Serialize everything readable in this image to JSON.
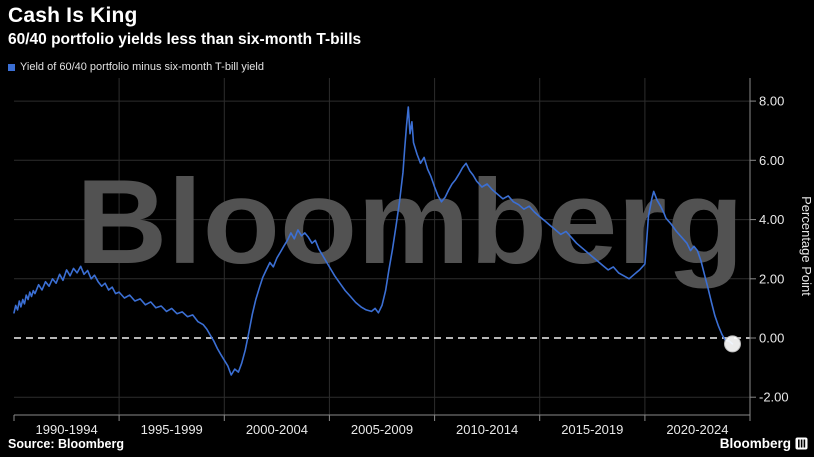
{
  "header": {
    "title": "Cash Is King",
    "subtitle": "60/40 portfolio yields less than six-month T-bills"
  },
  "legend": {
    "label": "Yield of 60/40 portfolio minus six-month T-bill yield",
    "color": "#3b6fd4"
  },
  "watermark": "Bloomberg",
  "axis": {
    "y_label": "Percentage Point"
  },
  "footer": {
    "source": "Source: Bloomberg",
    "brand": "Bloomberg"
  },
  "chart_data": {
    "type": "line",
    "title": "Cash Is King",
    "subtitle": "60/40 portfolio yields less than six-month T-bills",
    "series_name": "Yield of 60/40 portfolio minus six-month T-bill yield",
    "line_color": "#3b6fd4",
    "x_range": [
      1990,
      2025
    ],
    "ylim": [
      -2.6,
      8.78
    ],
    "y_ticks": [
      8,
      6,
      4,
      2,
      0,
      -2
    ],
    "y_tick_labels": [
      "8.00",
      "6.00",
      "4.00",
      "2.00",
      "0.00",
      "-2.00"
    ],
    "x_tick_labels": [
      "1990-1994",
      "1995-1999",
      "2000-2004",
      "2005-2009",
      "2010-2014",
      "2015-2019",
      "2020-2024"
    ],
    "zero_line": {
      "style": "dashed",
      "color": "#f2f2f2",
      "value": 0
    },
    "grid": "on",
    "legend_position": "top-left",
    "end_marker": {
      "value": -0.2,
      "year": 2024.17,
      "color": "#ffffff"
    },
    "colors": {
      "grid": "#2d2d2d",
      "axis": "#8a8a8a",
      "text": "#e8e8e8",
      "watermark": "#525252",
      "background": "#000000",
      "marker": "#ffffff",
      "zero": "#f2f2f2"
    },
    "points": [
      [
        1990,
        0.85
      ],
      [
        1990.08,
        1.1
      ],
      [
        1990.17,
        0.95
      ],
      [
        1990.25,
        1.25
      ],
      [
        1990.33,
        1.05
      ],
      [
        1990.42,
        1.3
      ],
      [
        1990.5,
        1.15
      ],
      [
        1990.58,
        1.45
      ],
      [
        1990.67,
        1.3
      ],
      [
        1990.75,
        1.55
      ],
      [
        1990.83,
        1.4
      ],
      [
        1990.92,
        1.6
      ],
      [
        1991,
        1.5
      ],
      [
        1991.17,
        1.8
      ],
      [
        1991.33,
        1.62
      ],
      [
        1991.5,
        1.9
      ],
      [
        1991.67,
        1.75
      ],
      [
        1991.83,
        2.0
      ],
      [
        1992,
        1.85
      ],
      [
        1992.17,
        2.15
      ],
      [
        1992.33,
        1.95
      ],
      [
        1992.5,
        2.3
      ],
      [
        1992.67,
        2.1
      ],
      [
        1992.83,
        2.35
      ],
      [
        1993,
        2.2
      ],
      [
        1993.17,
        2.42
      ],
      [
        1993.33,
        2.15
      ],
      [
        1993.5,
        2.28
      ],
      [
        1993.67,
        2.0
      ],
      [
        1993.83,
        2.12
      ],
      [
        1994,
        1.9
      ],
      [
        1994.17,
        1.75
      ],
      [
        1994.33,
        1.85
      ],
      [
        1994.5,
        1.62
      ],
      [
        1994.67,
        1.72
      ],
      [
        1994.83,
        1.5
      ],
      [
        1995,
        1.55
      ],
      [
        1995.25,
        1.35
      ],
      [
        1995.5,
        1.45
      ],
      [
        1995.75,
        1.25
      ],
      [
        1996,
        1.32
      ],
      [
        1996.25,
        1.12
      ],
      [
        1996.5,
        1.22
      ],
      [
        1996.75,
        1.02
      ],
      [
        1997,
        1.08
      ],
      [
        1997.25,
        0.9
      ],
      [
        1997.5,
        1.0
      ],
      [
        1997.75,
        0.82
      ],
      [
        1998,
        0.88
      ],
      [
        1998.25,
        0.72
      ],
      [
        1998.5,
        0.78
      ],
      [
        1998.75,
        0.55
      ],
      [
        1999,
        0.45
      ],
      [
        1999.17,
        0.3
      ],
      [
        1999.33,
        0.1
      ],
      [
        1999.5,
        -0.1
      ],
      [
        1999.67,
        -0.35
      ],
      [
        1999.83,
        -0.55
      ],
      [
        2000,
        -0.75
      ],
      [
        2000.17,
        -0.95
      ],
      [
        2000.33,
        -1.25
      ],
      [
        2000.5,
        -1.05
      ],
      [
        2000.67,
        -1.15
      ],
      [
        2000.83,
        -0.85
      ],
      [
        2001,
        -0.4
      ],
      [
        2001.17,
        0.2
      ],
      [
        2001.33,
        0.8
      ],
      [
        2001.5,
        1.3
      ],
      [
        2001.67,
        1.7
      ],
      [
        2001.83,
        2.05
      ],
      [
        2002,
        2.3
      ],
      [
        2002.17,
        2.55
      ],
      [
        2002.33,
        2.4
      ],
      [
        2002.5,
        2.7
      ],
      [
        2002.67,
        2.9
      ],
      [
        2002.83,
        3.1
      ],
      [
        2003,
        3.3
      ],
      [
        2003.17,
        3.55
      ],
      [
        2003.33,
        3.35
      ],
      [
        2003.5,
        3.65
      ],
      [
        2003.67,
        3.45
      ],
      [
        2003.83,
        3.55
      ],
      [
        2004,
        3.4
      ],
      [
        2004.17,
        3.2
      ],
      [
        2004.33,
        3.3
      ],
      [
        2004.5,
        3.0
      ],
      [
        2004.67,
        2.8
      ],
      [
        2004.83,
        2.6
      ],
      [
        2005,
        2.4
      ],
      [
        2005.25,
        2.1
      ],
      [
        2005.5,
        1.85
      ],
      [
        2005.75,
        1.6
      ],
      [
        2006,
        1.4
      ],
      [
        2006.25,
        1.2
      ],
      [
        2006.5,
        1.05
      ],
      [
        2006.75,
        0.95
      ],
      [
        2007,
        0.9
      ],
      [
        2007.17,
        1.0
      ],
      [
        2007.33,
        0.85
      ],
      [
        2007.5,
        1.1
      ],
      [
        2007.67,
        1.6
      ],
      [
        2007.83,
        2.3
      ],
      [
        2008,
        3.0
      ],
      [
        2008.17,
        3.8
      ],
      [
        2008.33,
        4.6
      ],
      [
        2008.5,
        5.6
      ],
      [
        2008.58,
        6.4
      ],
      [
        2008.67,
        7.2
      ],
      [
        2008.75,
        7.8
      ],
      [
        2008.83,
        6.9
      ],
      [
        2008.92,
        7.3
      ],
      [
        2009,
        6.6
      ],
      [
        2009.17,
        6.2
      ],
      [
        2009.33,
        5.9
      ],
      [
        2009.5,
        6.1
      ],
      [
        2009.67,
        5.7
      ],
      [
        2009.83,
        5.45
      ],
      [
        2010,
        5.1
      ],
      [
        2010.17,
        4.8
      ],
      [
        2010.33,
        4.6
      ],
      [
        2010.5,
        4.75
      ],
      [
        2010.67,
        5.0
      ],
      [
        2010.83,
        5.2
      ],
      [
        2011,
        5.35
      ],
      [
        2011.17,
        5.55
      ],
      [
        2011.33,
        5.75
      ],
      [
        2011.5,
        5.9
      ],
      [
        2011.67,
        5.65
      ],
      [
        2011.83,
        5.5
      ],
      [
        2012,
        5.3
      ],
      [
        2012.25,
        5.1
      ],
      [
        2012.5,
        5.2
      ],
      [
        2012.75,
        5.0
      ],
      [
        2013,
        4.85
      ],
      [
        2013.25,
        4.7
      ],
      [
        2013.5,
        4.8
      ],
      [
        2013.75,
        4.6
      ],
      [
        2014,
        4.5
      ],
      [
        2014.25,
        4.35
      ],
      [
        2014.5,
        4.45
      ],
      [
        2014.75,
        4.25
      ],
      [
        2015,
        4.1
      ],
      [
        2015.25,
        3.95
      ],
      [
        2015.5,
        3.8
      ],
      [
        2015.75,
        3.65
      ],
      [
        2016,
        3.5
      ],
      [
        2016.25,
        3.6
      ],
      [
        2016.5,
        3.4
      ],
      [
        2016.75,
        3.2
      ],
      [
        2017,
        3.05
      ],
      [
        2017.25,
        2.9
      ],
      [
        2017.5,
        2.75
      ],
      [
        2017.75,
        2.6
      ],
      [
        2018,
        2.45
      ],
      [
        2018.25,
        2.3
      ],
      [
        2018.5,
        2.4
      ],
      [
        2018.75,
        2.2
      ],
      [
        2019,
        2.1
      ],
      [
        2019.25,
        2.0
      ],
      [
        2019.5,
        2.15
      ],
      [
        2019.75,
        2.3
      ],
      [
        2020,
        2.5
      ],
      [
        2020.08,
        3.2
      ],
      [
        2020.17,
        4.1
      ],
      [
        2020.33,
        4.7
      ],
      [
        2020.42,
        4.95
      ],
      [
        2020.58,
        4.65
      ],
      [
        2020.75,
        4.45
      ],
      [
        2020.92,
        4.2
      ],
      [
        2021,
        4.05
      ],
      [
        2021.25,
        3.85
      ],
      [
        2021.5,
        3.6
      ],
      [
        2021.75,
        3.4
      ],
      [
        2022,
        3.2
      ],
      [
        2022.17,
        2.95
      ],
      [
        2022.33,
        3.1
      ],
      [
        2022.5,
        2.95
      ],
      [
        2022.67,
        2.6
      ],
      [
        2022.83,
        2.15
      ],
      [
        2023,
        1.7
      ],
      [
        2023.17,
        1.2
      ],
      [
        2023.33,
        0.75
      ],
      [
        2023.5,
        0.4
      ],
      [
        2023.67,
        0.12
      ],
      [
        2023.83,
        -0.08
      ],
      [
        2024,
        -0.1
      ],
      [
        2024.17,
        -0.2
      ]
    ]
  }
}
